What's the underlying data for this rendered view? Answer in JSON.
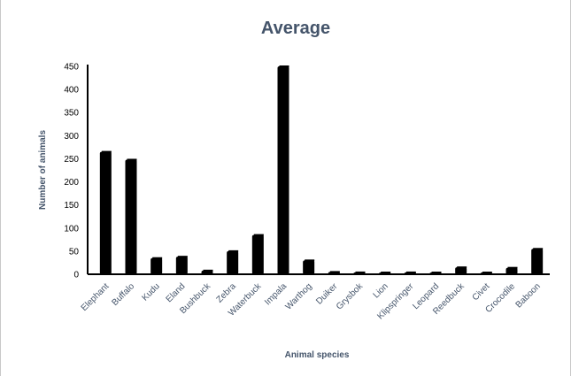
{
  "colors": {
    "bar": "#000000",
    "bar_highlight": "#555555",
    "text": "#44546a",
    "axis": "#000000"
  },
  "chart_data": {
    "type": "bar",
    "title": "Average",
    "xlabel": "Animal species",
    "ylabel": "Number of animals",
    "ylim": [
      0,
      450
    ],
    "yticks": [
      0,
      50,
      100,
      150,
      200,
      250,
      300,
      350,
      400,
      450
    ],
    "ytick_labels": [
      "0",
      "50",
      "100",
      "150",
      "200",
      "250",
      "300",
      "350",
      "400",
      "450"
    ],
    "grid": false,
    "legend": "none",
    "categories": [
      "Elephant",
      "Buffalo",
      "Kudu",
      "Eland",
      "Bushbuck",
      "Zebra",
      "Waterbuck",
      "Impala",
      "Warthog",
      "Duiker",
      "Grysbok",
      "Lion",
      "Klipspringer",
      "Leopard",
      "Reedbuck",
      "Civet",
      "Crocodile",
      "Baboon"
    ],
    "values": [
      265,
      248,
      35,
      38,
      8,
      50,
      85,
      450,
      30,
      5,
      4,
      3,
      4,
      3,
      15,
      3,
      14,
      55
    ]
  }
}
